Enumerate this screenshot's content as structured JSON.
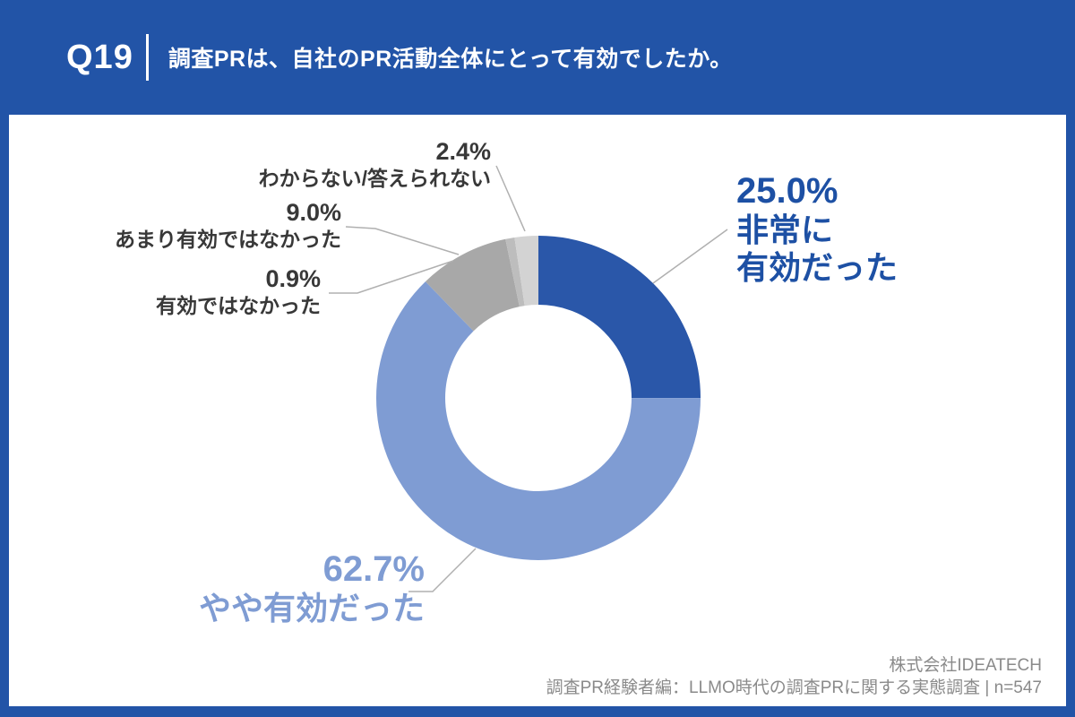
{
  "header": {
    "question_number": "Q19",
    "question": "調査PRは、自社のPR活動全体にとって有効でしたか。"
  },
  "chart_data": {
    "type": "pie",
    "subtype": "donut",
    "title": "調査PRは、自社のPR活動全体にとって有効でしたか。",
    "unit": "%",
    "start_angle": "top",
    "direction": "clockwise",
    "segments": [
      {
        "label": "非常に有効だった",
        "label_lines": [
          "非常に",
          "有効だった"
        ],
        "value": 25.0,
        "display": "25.0%",
        "color": "#2a57a9"
      },
      {
        "label": "やや有効だった",
        "value": 62.7,
        "display": "62.7%",
        "color": "#7f9cd3"
      },
      {
        "label": "あまり有効ではなかった",
        "value": 9.0,
        "display": "9.0%",
        "color": "#a8a8a8"
      },
      {
        "label": "有効ではなかった",
        "value": 0.9,
        "display": "0.9%",
        "color": "#bdbdbd"
      },
      {
        "label": "わからない/答えられない",
        "value": 2.4,
        "display": "2.4%",
        "color": "#d3d3d3"
      }
    ],
    "accent_colors": {
      "page_blue": "#2254a7",
      "dark_label_blue": "#1d50a4",
      "light_label_blue": "#7f9cd3",
      "small_label_gray": "#383838",
      "leader_line_gray": "#b0b0b0"
    }
  },
  "footer": {
    "company": "株式会社IDEATECH",
    "source": "調査PR経験者編：LLMO時代の調査PRに関する実態調査 | n=547"
  }
}
